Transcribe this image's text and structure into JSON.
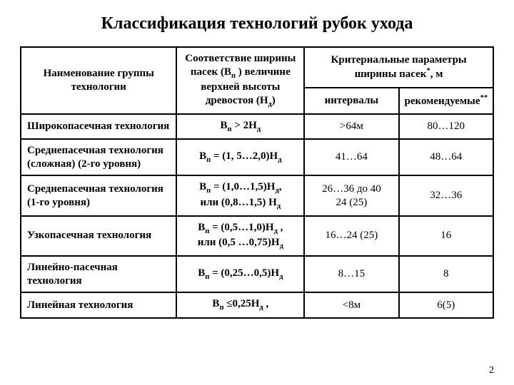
{
  "title": "Классификация технологий рубок ухода",
  "header": {
    "col1": "Наименование группы технологии",
    "col2_line1": "Соответствие ширины",
    "col2_line2": "пасек (B",
    "col2_line2_sub": "п",
    "col2_line2_end": " ) величине",
    "col2_line3": "верхней высоты",
    "col2_line4": "древостоя (H",
    "col2_line4_sub": "д",
    "col2_line4_end": ")",
    "col3_top": "Критериальные параметры ширины пасек",
    "col3_top_sup": "*",
    "col3_top_end": ", м",
    "col3_sub1": "интервалы",
    "col3_sub2": "рекомендуемые",
    "col3_sub2_sup": "**"
  },
  "rows": [
    {
      "name": "Широкопасечная технология",
      "formula_pre": "B",
      "formula_sub1": "п",
      "formula_mid": " > 2H",
      "formula_sub2": "д",
      "formula_post": "",
      "interval": ">64м",
      "recommend": "80…120"
    },
    {
      "name": "Среднепасечная технология (сложная) (2-го уровня)",
      "formula_pre": "B",
      "formula_sub1": "п",
      "formula_mid": " = (1, 5…2,0)H",
      "formula_sub2": "д",
      "formula_post": "",
      "interval": "41…64",
      "recommend": "48…64"
    },
    {
      "name": "Среднепасечная технология (1-го уровня)",
      "formula_pre": "B",
      "formula_sub1": "п",
      "formula_mid": " = (1,0…1,5)H",
      "formula_sub2": "д",
      "formula_post": ",",
      "formula_line2_pre": "или  (0,8…1,5) H",
      "formula_line2_sub": "д",
      "formula_line2_post": "",
      "interval": "26…36 до 40",
      "interval_line2": "24 (25)",
      "recommend": "32…36"
    },
    {
      "name": "Узкопасечная технология",
      "formula_pre": "B",
      "formula_sub1": "п",
      "formula_mid": " = (0,5…1,0)H",
      "formula_sub2": "д",
      "formula_post": " ,",
      "formula_line2_pre": "или (0,5 …0,75)H",
      "formula_line2_sub": "д",
      "formula_line2_post": "",
      "interval": "16…24 (25)",
      "recommend": "16"
    },
    {
      "name": "Линейно-пасечная технология",
      "formula_pre": "B",
      "formula_sub1": "п",
      "formula_mid": " = (0,25…0,5)H",
      "formula_sub2": "д",
      "formula_post": "",
      "interval": "8…15",
      "recommend": "8"
    },
    {
      "name": "Линейная технология",
      "formula_pre": "B",
      "formula_sub1": "п",
      "formula_mid": " ≤0,25H",
      "formula_sub2": "д",
      "formula_post": " ,",
      "interval": "<8м",
      "recommend": "6(5)"
    }
  ],
  "pageNumber": "2"
}
